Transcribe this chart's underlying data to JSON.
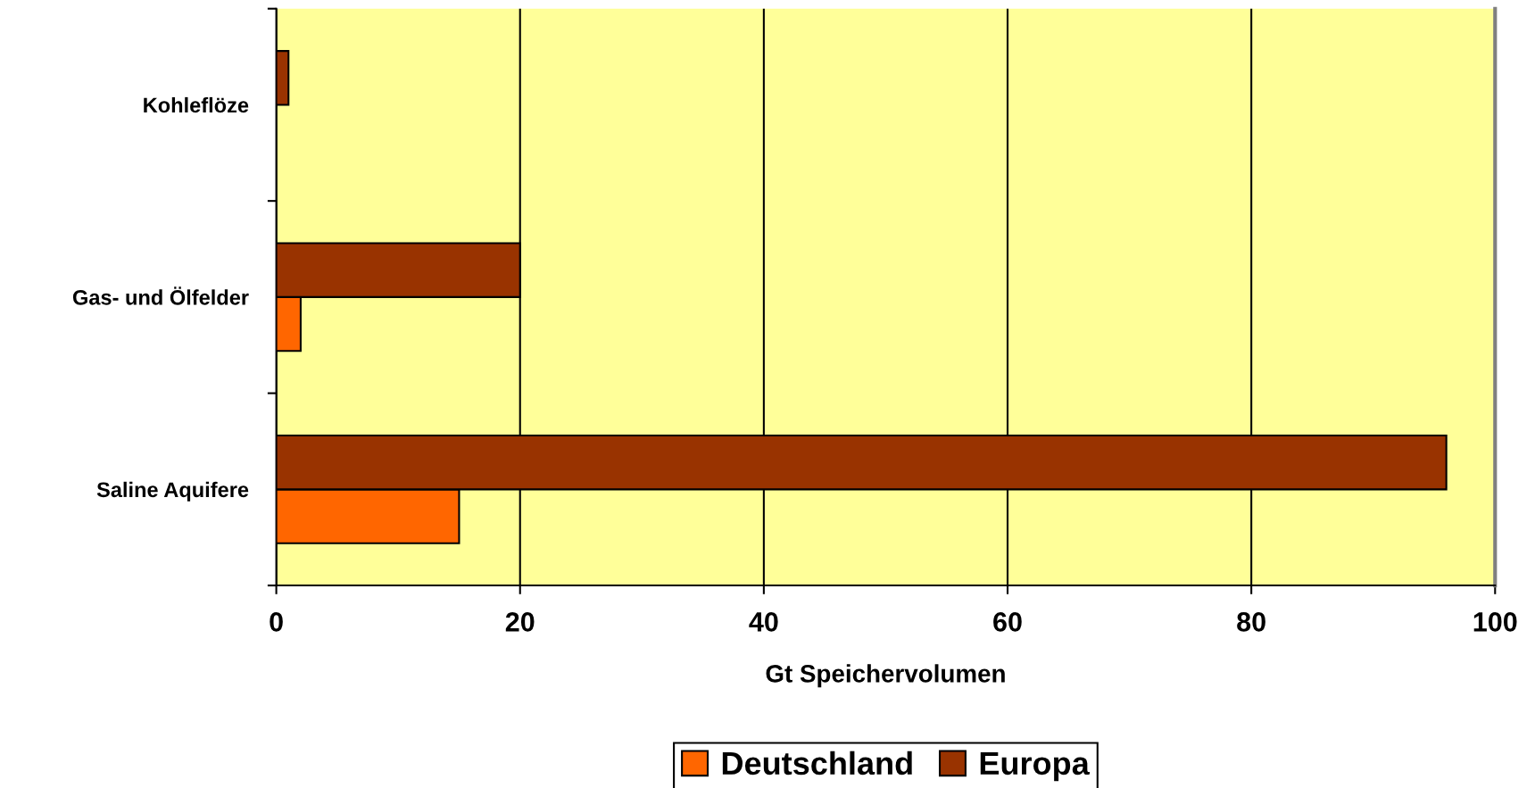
{
  "chart_data": {
    "type": "bar",
    "orientation": "horizontal",
    "xlabel": "Gt Speichervolumen",
    "categories": [
      "Kohleflöze",
      "Gas- und Ölfelder",
      "Saline Aquifere"
    ],
    "series": [
      {
        "name": "Deutschland",
        "color": "#ff6600",
        "values": [
          null,
          2,
          15
        ]
      },
      {
        "name": "Europa",
        "color": "#993300",
        "values": [
          1,
          20,
          96
        ]
      }
    ],
    "xlim": [
      0,
      100
    ],
    "xticks": [
      0,
      20,
      40,
      60,
      80,
      100
    ],
    "grid": "x",
    "legend": "bottom"
  }
}
